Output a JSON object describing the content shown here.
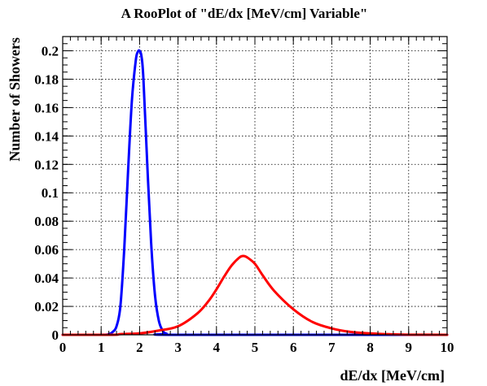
{
  "chart_data": {
    "type": "line",
    "title": "A RooPlot of \"dE/dx [MeV/cm] Variable\"",
    "xlabel": "dE/dx [MeV/cm]",
    "ylabel": "Number of Showers",
    "xlim": [
      0,
      10
    ],
    "ylim": [
      0,
      0.21
    ],
    "xticks": [
      "0",
      "1",
      "2",
      "3",
      "4",
      "5",
      "6",
      "7",
      "8",
      "9",
      "10"
    ],
    "yticks": [
      "0",
      "0.02",
      "0.04",
      "0.06",
      "0.08",
      "0.1",
      "0.12",
      "0.14",
      "0.16",
      "0.18",
      "0.2"
    ],
    "grid": true,
    "series": [
      {
        "color": "#0000ff",
        "x": [
          0,
          1.0,
          1.2,
          1.3,
          1.4,
          1.5,
          1.6,
          1.7,
          1.8,
          1.9,
          1.95,
          2.0,
          2.05,
          2.1,
          2.2,
          2.3,
          2.4,
          2.5,
          2.6,
          2.7,
          3.0,
          10
        ],
        "y": [
          0,
          0,
          0.0005,
          0.002,
          0.006,
          0.02,
          0.06,
          0.115,
          0.165,
          0.193,
          0.199,
          0.2,
          0.196,
          0.18,
          0.12,
          0.065,
          0.028,
          0.01,
          0.003,
          0.0008,
          0,
          0
        ]
      },
      {
        "color": "#ff0000",
        "x": [
          0,
          1.3,
          1.5,
          2.0,
          2.5,
          3.0,
          3.5,
          3.8,
          4.0,
          4.2,
          4.4,
          4.6,
          4.7,
          4.8,
          5.0,
          5.2,
          5.5,
          6.0,
          6.5,
          7.0,
          7.5,
          8.0,
          8.5,
          9.0,
          10
        ],
        "y": [
          0,
          0,
          0.0005,
          0.001,
          0.003,
          0.006,
          0.015,
          0.024,
          0.032,
          0.041,
          0.049,
          0.0545,
          0.0555,
          0.0545,
          0.05,
          0.042,
          0.031,
          0.018,
          0.009,
          0.0045,
          0.002,
          0.001,
          0.0004,
          0.0001,
          0
        ]
      }
    ]
  }
}
